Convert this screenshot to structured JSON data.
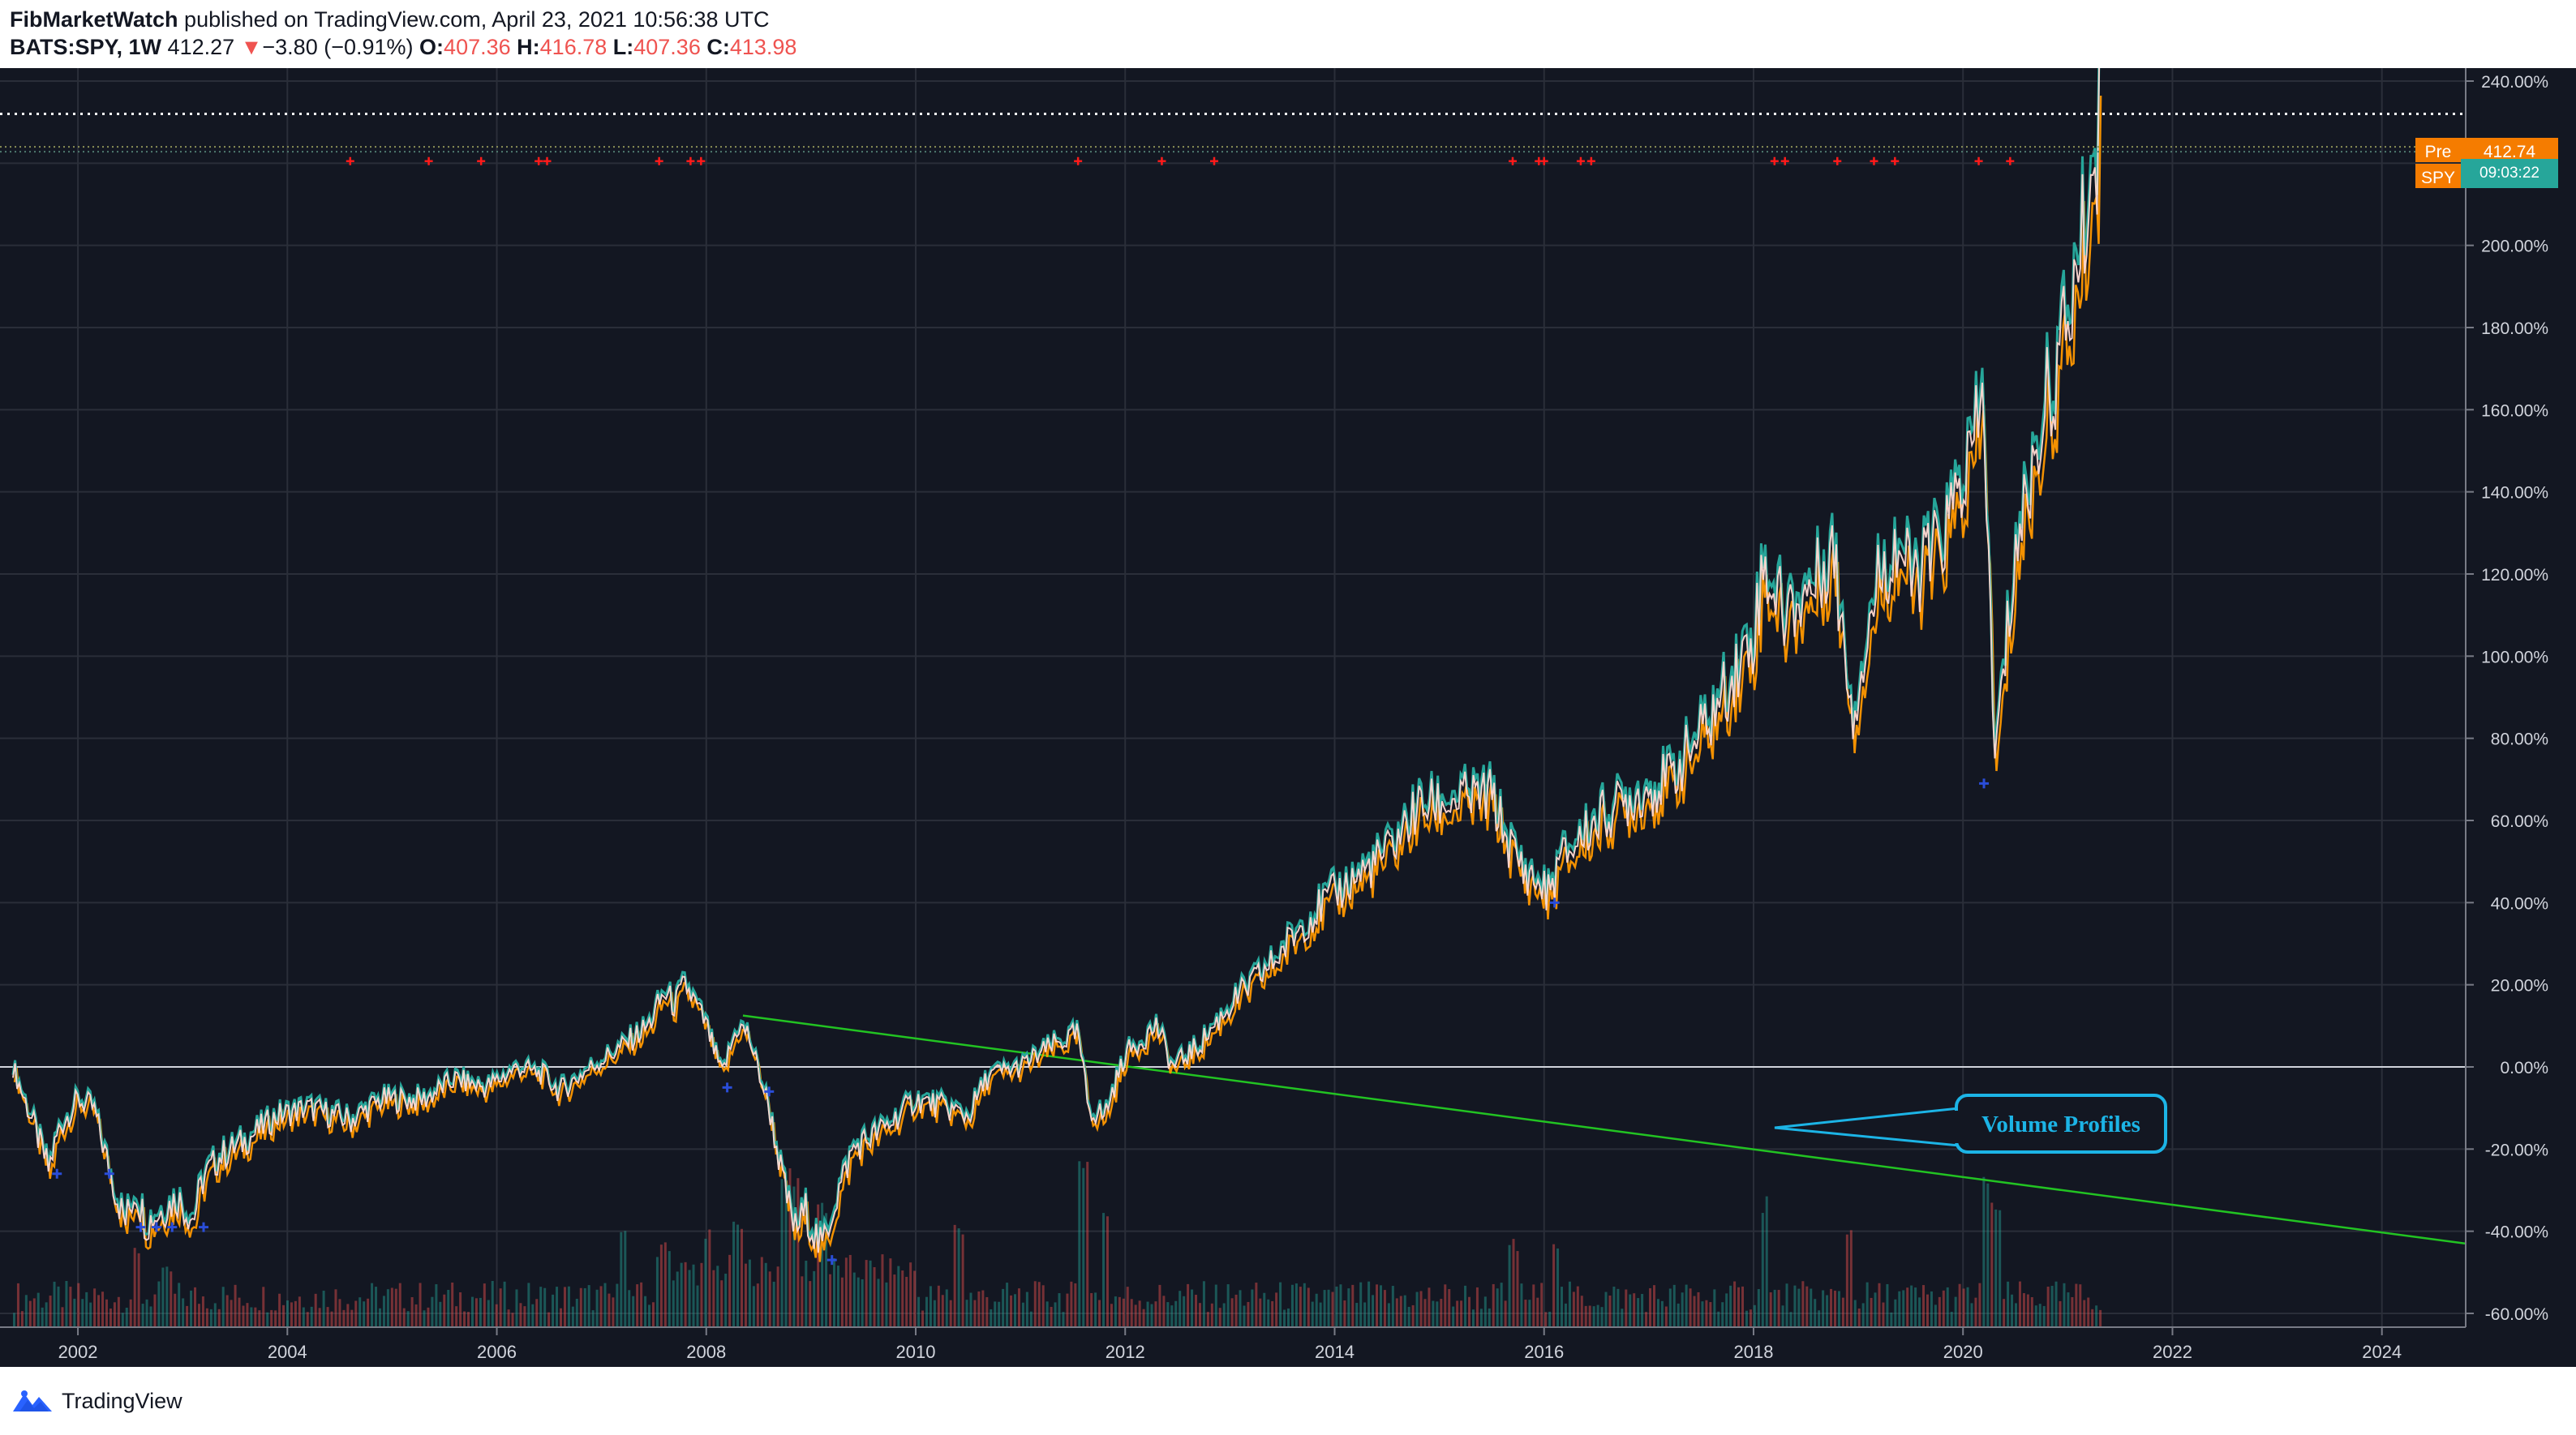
{
  "header": {
    "author": "FibMarketWatch",
    "published_text": "published on TradingView.com, April 23, 2021 10:56:38 UTC",
    "symbol": "BATS:SPY, 1W",
    "last_price": "412.27",
    "change_arrow": "▼",
    "change": "−3.80 (−0.91%)",
    "open_label": "O:",
    "open": "407.36",
    "high_label": "H:",
    "high": "416.78",
    "low_label": "L:",
    "low": "407.36",
    "close_label": "C:",
    "close": "413.98"
  },
  "badges": {
    "pre_label": "Pre",
    "pre_value": "412.74",
    "spy_label": "SPY",
    "countdown": "09:03:22"
  },
  "annotation": {
    "callout_text": "Volume Profiles"
  },
  "footer": {
    "brand": "TradingView",
    "logo_icon": "tradingview-logo-icon"
  },
  "colors": {
    "background": "#131722",
    "grid": "#2a2e39",
    "up": "#26a69a",
    "down": "#ef5350",
    "price_line_orange": "#ff9800",
    "trendline": "#22c322",
    "callout": "#1cb4e6",
    "marker_red": "#ff1a1a",
    "marker_blue": "#2a4dd8",
    "badge_orange": "#f57c00",
    "badge_teal": "#26a69a"
  },
  "chart_data": {
    "type": "line",
    "title": "",
    "scale": "percent",
    "x": [
      2001.38,
      2001.45,
      2001.55,
      2001.72,
      2001.82,
      2002.0,
      2002.15,
      2002.3,
      2002.45,
      2002.55,
      2002.65,
      2002.8,
      2002.95,
      2003.1,
      2003.2,
      2003.35,
      2003.6,
      2003.9,
      2004.2,
      2004.6,
      2004.9,
      2005.3,
      2005.6,
      2005.9,
      2006.2,
      2006.45,
      2006.6,
      2006.9,
      2007.2,
      2007.45,
      2007.6,
      2007.7,
      2007.8,
      2008.0,
      2008.15,
      2008.3,
      2008.4,
      2008.6,
      2008.75,
      2008.85,
      2008.95,
      2009.1,
      2009.2,
      2009.4,
      2009.7,
      2010.0,
      2010.3,
      2010.5,
      2010.7,
      2011.0,
      2011.3,
      2011.55,
      2011.65,
      2011.8,
      2012.0,
      2012.3,
      2012.45,
      2012.7,
      2013.0,
      2013.4,
      2013.7,
      2014.0,
      2014.5,
      2014.8,
      2015.2,
      2015.5,
      2015.65,
      2015.8,
      2016.05,
      2016.15,
      2016.5,
      2016.8,
      2017.2,
      2017.6,
      2018.0,
      2018.1,
      2018.3,
      2018.6,
      2018.75,
      2018.95,
      2019.2,
      2019.4,
      2019.5,
      2019.8,
      2020.1,
      2020.2,
      2020.3,
      2020.5,
      2020.7,
      2020.75,
      2020.9,
      2021.1,
      2021.3
    ],
    "y": [
      0,
      -5,
      -12,
      -25,
      -15,
      -8,
      -10,
      -25,
      -38,
      -30,
      -38,
      -35,
      -32,
      -37,
      -27,
      -22,
      -18,
      -12,
      -10,
      -13,
      -8,
      -8,
      -3,
      -5,
      0,
      -2,
      -6,
      0,
      5,
      10,
      18,
      15,
      20,
      10,
      -2,
      10,
      8,
      -10,
      -30,
      -40,
      -35,
      -45,
      -35,
      -20,
      -15,
      -8,
      -10,
      -12,
      -2,
      0,
      5,
      8,
      -10,
      -12,
      3,
      10,
      0,
      5,
      15,
      25,
      35,
      42,
      52,
      63,
      65,
      66,
      55,
      48,
      42,
      50,
      60,
      65,
      70,
      85,
      105,
      122,
      110,
      118,
      127,
      86,
      120,
      127,
      118,
      128,
      150,
      163,
      73,
      125,
      150,
      158,
      170,
      195,
      228
    ],
    "ylim": [
      -60,
      240
    ],
    "y_ticks": [
      "240.00%",
      "220.00%",
      "200.00%",
      "180.00%",
      "160.00%",
      "140.00%",
      "120.00%",
      "100.00%",
      "80.00%",
      "60.00%",
      "40.00%",
      "20.00%",
      "0.00%",
      "-20.00%",
      "-40.00%",
      "-60.00%"
    ],
    "x_ticks": [
      "2002",
      "2004",
      "2006",
      "2008",
      "2010",
      "2012",
      "2014",
      "2016",
      "2018",
      "2020",
      "2022",
      "2024"
    ],
    "xlim": [
      2001.38,
      2024.8
    ],
    "trendline": {
      "x": [
        2008.35,
        2024.8
      ],
      "y": [
        12.5,
        -43
      ]
    },
    "red_markers_x": [
      2004.6,
      2005.35,
      2005.85,
      2006.4,
      2006.48,
      2007.55,
      2007.85,
      2007.95,
      2011.55,
      2012.35,
      2012.85,
      2015.7,
      2015.95,
      2016.0,
      2016.35,
      2016.45,
      2018.2,
      2018.3,
      2018.8,
      2019.15,
      2019.35,
      2020.15,
      2020.45
    ],
    "blue_markers": [
      {
        "x": 2001.8,
        "y": -26
      },
      {
        "x": 2002.3,
        "y": -26
      },
      {
        "x": 2002.6,
        "y": -39
      },
      {
        "x": 2002.75,
        "y": -39
      },
      {
        "x": 2002.9,
        "y": -39
      },
      {
        "x": 2003.2,
        "y": -39
      },
      {
        "x": 2008.2,
        "y": -5
      },
      {
        "x": 2008.6,
        "y": -6
      },
      {
        "x": 2009.2,
        "y": -47
      },
      {
        "x": 2016.1,
        "y": 40
      },
      {
        "x": 2020.2,
        "y": 69
      }
    ],
    "volume_spikes": [
      {
        "x": 2002.55,
        "v": 0.45
      },
      {
        "x": 2002.85,
        "v": 0.35
      },
      {
        "x": 2007.2,
        "v": 0.6
      },
      {
        "x": 2007.6,
        "v": 0.5
      },
      {
        "x": 2008.0,
        "v": 0.55
      },
      {
        "x": 2008.3,
        "v": 0.6
      },
      {
        "x": 2008.75,
        "v": 0.95
      },
      {
        "x": 2008.85,
        "v": 0.9
      },
      {
        "x": 2009.1,
        "v": 0.7
      },
      {
        "x": 2010.4,
        "v": 0.6
      },
      {
        "x": 2011.6,
        "v": 1.0
      },
      {
        "x": 2011.8,
        "v": 0.7
      },
      {
        "x": 2015.7,
        "v": 0.5
      },
      {
        "x": 2016.1,
        "v": 0.5
      },
      {
        "x": 2018.1,
        "v": 0.75
      },
      {
        "x": 2018.9,
        "v": 0.55
      },
      {
        "x": 2020.2,
        "v": 0.9
      },
      {
        "x": 2020.3,
        "v": 0.7
      }
    ],
    "current_value_percent": 232,
    "pre_value_percent": 224,
    "grid": true
  }
}
